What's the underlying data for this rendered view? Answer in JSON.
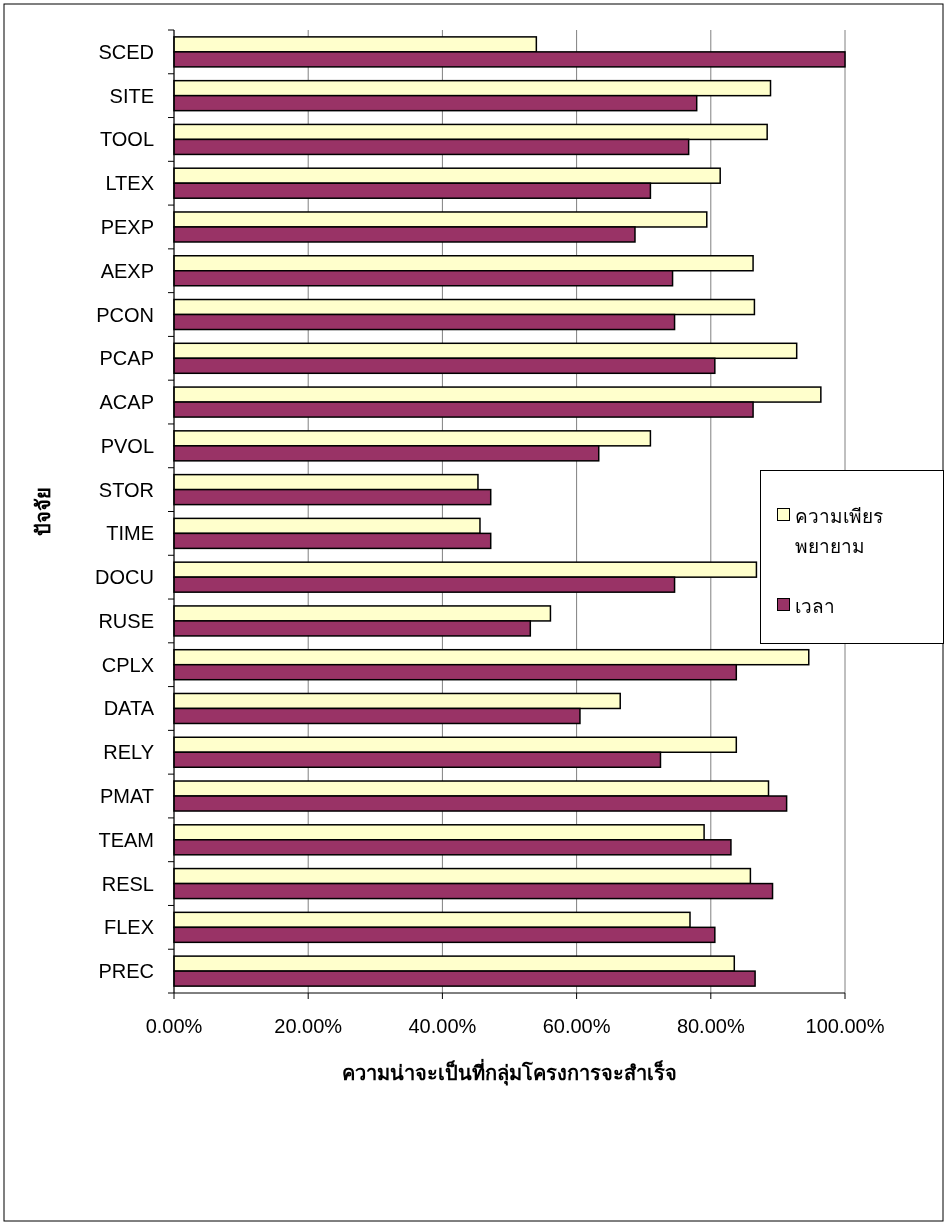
{
  "chart_data": {
    "type": "bar",
    "orientation": "horizontal",
    "xlabel": "ความน่าจะเป็นที่กลุ่มโครงการจะสำเร็จ",
    "ylabel": "ปัจจัย",
    "categories": [
      "SCED",
      "SITE",
      "TOOL",
      "LTEX",
      "PEXP",
      "AEXP",
      "PCON",
      "PCAP",
      "ACAP",
      "PVOL",
      "STOR",
      "TIME",
      "DOCU",
      "RUSE",
      "CPLX",
      "DATA",
      "RELY",
      "PMAT",
      "TEAM",
      "RESL",
      "FLEX",
      "PREC"
    ],
    "series": [
      {
        "name": "ความเพียรพยายาม",
        "color": "#ffffcc",
        "values": [
          54.0,
          88.9,
          88.4,
          81.4,
          79.4,
          86.3,
          86.5,
          92.8,
          96.4,
          71.0,
          45.3,
          45.6,
          86.8,
          56.1,
          94.6,
          66.5,
          83.8,
          88.6,
          79.0,
          85.9,
          76.9,
          83.5
        ]
      },
      {
        "name": "เวลา",
        "color": "#993366",
        "values": [
          100,
          77.9,
          76.7,
          71.0,
          68.7,
          74.3,
          74.6,
          80.6,
          86.3,
          63.3,
          47.2,
          47.2,
          74.6,
          53.1,
          83.8,
          60.5,
          72.5,
          91.3,
          83.0,
          89.2,
          80.6,
          86.6
        ]
      }
    ],
    "xlim": [
      0,
      100
    ],
    "xticks": [
      {
        "value": 0,
        "label": "0.00%"
      },
      {
        "value": 20,
        "label": "20.00%"
      },
      {
        "value": 40,
        "label": "40.00%"
      },
      {
        "value": 60,
        "label": "60.00%"
      },
      {
        "value": 80,
        "label": "80.00%"
      },
      {
        "value": 100,
        "label": "100.00%"
      }
    ],
    "grid": "x",
    "legend": "right"
  }
}
